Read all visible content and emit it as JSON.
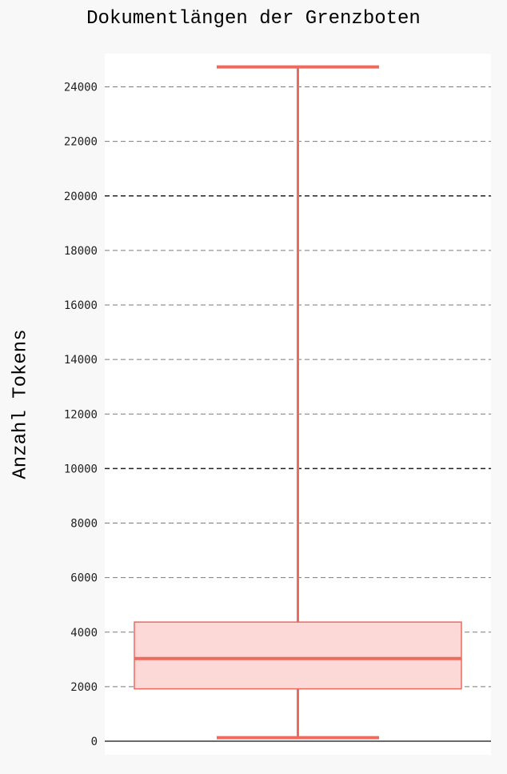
{
  "colors": {
    "box_stroke": "#ec6a5e",
    "box_fill": "#fcd9d6",
    "grid_minor": "#7a7a7a",
    "grid_major": "#222222",
    "plot_bg": "#ffffff",
    "page_bg": "#f8f8f8"
  },
  "chart_data": {
    "type": "boxplot",
    "title": "Dokumentlängen der Grenzboten",
    "xlabel": "",
    "ylabel": "Anzahl Tokens",
    "ylim": [
      0,
      25500
    ],
    "yticks": [
      0,
      2000,
      4000,
      6000,
      8000,
      10000,
      12000,
      14000,
      16000,
      18000,
      20000,
      22000,
      24000
    ],
    "ytick_labels": [
      "0",
      "2000",
      "4000",
      "6000",
      "8000",
      "10000",
      "12000",
      "14000",
      "16000",
      "18000",
      "20000",
      "22000",
      "24000"
    ],
    "major_gridlines": [
      10000,
      20000
    ],
    "grid": true,
    "box": {
      "whisker_low": 130,
      "q1": 1920,
      "median": 3030,
      "q3": 4370,
      "whisker_high": 24730
    }
  }
}
